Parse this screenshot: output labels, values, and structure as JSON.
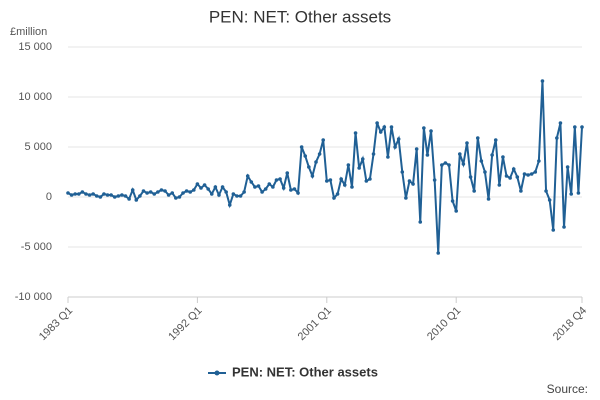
{
  "chart_data": {
    "type": "line",
    "title": "PEN: NET: Other assets",
    "y_unit": "£million",
    "source": "Source:",
    "categories": [
      "1983 Q1",
      null,
      null,
      null,
      null,
      null,
      null,
      null,
      null,
      null,
      null,
      null,
      null,
      null,
      null,
      null,
      null,
      null,
      null,
      null,
      null,
      null,
      null,
      null,
      null,
      null,
      null,
      null,
      null,
      null,
      null,
      null,
      null,
      null,
      null,
      null,
      "1992 Q1",
      null,
      null,
      null,
      null,
      null,
      null,
      null,
      null,
      null,
      null,
      null,
      null,
      null,
      null,
      null,
      null,
      null,
      null,
      null,
      null,
      null,
      null,
      null,
      null,
      null,
      null,
      null,
      null,
      null,
      null,
      null,
      null,
      null,
      null,
      null,
      "2001 Q1",
      null,
      null,
      null,
      null,
      null,
      null,
      null,
      null,
      null,
      null,
      null,
      null,
      null,
      null,
      null,
      null,
      null,
      null,
      null,
      null,
      null,
      null,
      null,
      null,
      null,
      null,
      null,
      null,
      null,
      null,
      null,
      null,
      null,
      null,
      null,
      "2010 Q1",
      null,
      null,
      null,
      null,
      null,
      null,
      null,
      null,
      null,
      null,
      null,
      null,
      null,
      null,
      null,
      null,
      null,
      null,
      null,
      null,
      null,
      null,
      null,
      null,
      null,
      null,
      null,
      null,
      null,
      null,
      null,
      null,
      null,
      null,
      "2018 Q4"
    ],
    "series": [
      {
        "name": "PEN: NET: Other assets",
        "color": "#206095",
        "values": [
          400,
          200,
          300,
          300,
          500,
          300,
          200,
          300,
          100,
          0,
          300,
          200,
          200,
          0,
          100,
          200,
          100,
          -200,
          700,
          -300,
          100,
          600,
          400,
          500,
          300,
          500,
          700,
          600,
          200,
          400,
          -100,
          0,
          400,
          600,
          500,
          700,
          1300,
          900,
          1200,
          800,
          300,
          1000,
          200,
          1000,
          500,
          -800,
          300,
          100,
          100,
          500,
          2100,
          1500,
          1000,
          1100,
          500,
          800,
          1300,
          1000,
          1700,
          1800,
          900,
          2400,
          700,
          800,
          400,
          5000,
          4100,
          3000,
          2100,
          3500,
          4300,
          5700,
          1600,
          1700,
          -100,
          300,
          1800,
          1200,
          3200,
          1000,
          6400,
          2900,
          3800,
          1600,
          1800,
          4300,
          7400,
          6500,
          7000,
          4000,
          7000,
          5000,
          5800,
          2500,
          -100,
          1600,
          1300,
          4800,
          -2500,
          6900,
          4200,
          6600,
          1700,
          -5600,
          3200,
          3400,
          3200,
          -400,
          -1400,
          4300,
          3300,
          5400,
          2000,
          600,
          5900,
          3600,
          2500,
          -200,
          4200,
          5700,
          1200,
          4000,
          2100,
          1900,
          2800,
          2000,
          600,
          2300,
          2200,
          2300,
          2500,
          3600,
          11600,
          600,
          -300,
          -3300,
          5900,
          7400,
          -3000,
          3000,
          300,
          7000,
          400,
          7000
        ]
      }
    ],
    "ylim": [
      -10000,
      15000
    ],
    "yticks": [
      {
        "value": -10000,
        "label": "-10 000"
      },
      {
        "value": -5000,
        "label": "-5 000"
      },
      0,
      {
        "value": 5000,
        "label": "5 000"
      },
      {
        "value": 10000,
        "label": "10 000"
      },
      {
        "value": 15000,
        "label": "15 000"
      }
    ],
    "grid": true
  }
}
